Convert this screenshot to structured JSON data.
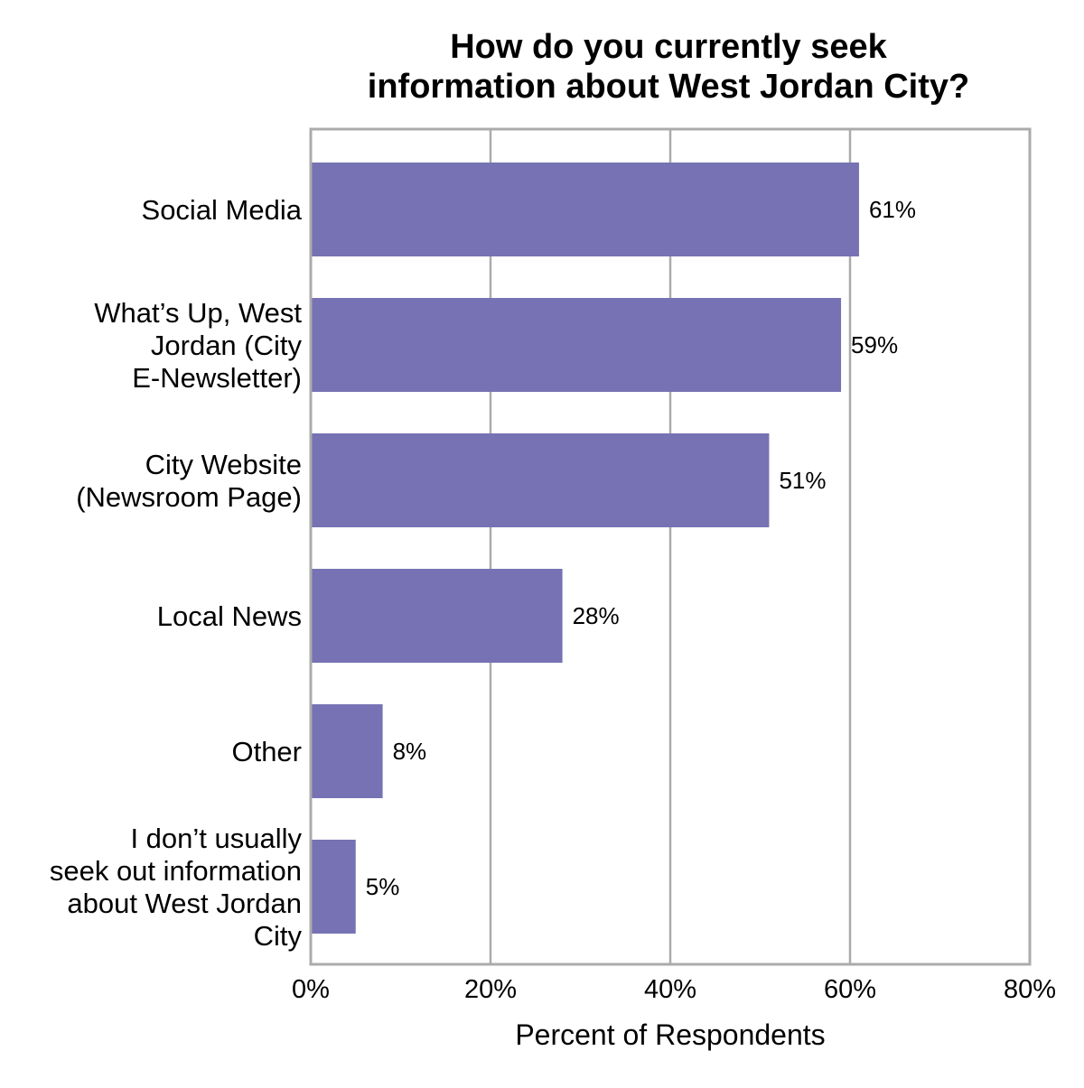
{
  "chart_data": {
    "type": "bar",
    "orientation": "horizontal",
    "title_lines": [
      "How do you currently seek",
      "information about West Jordan City?"
    ],
    "xlabel": "Percent of Respondents",
    "ylabel": "",
    "xlim": [
      0,
      80
    ],
    "x_ticks": [
      0,
      20,
      40,
      60,
      80
    ],
    "x_tick_labels": [
      "0%",
      "20%",
      "40%",
      "60%",
      "80%"
    ],
    "grid": true,
    "bar_color": "#7672B3",
    "categories": [
      {
        "lines": [
          "Social Media"
        ],
        "value": 61,
        "label": "61%"
      },
      {
        "lines": [
          "What’s Up, West",
          "Jordan (City",
          "E-Newsletter)"
        ],
        "value": 59,
        "label": "59%"
      },
      {
        "lines": [
          "City Website",
          "(Newsroom Page)"
        ],
        "value": 51,
        "label": "51%"
      },
      {
        "lines": [
          "Local News"
        ],
        "value": 28,
        "label": "28%"
      },
      {
        "lines": [
          "Other"
        ],
        "value": 8,
        "label": "8%"
      },
      {
        "lines": [
          "I don’t usually",
          "seek out information",
          "about West Jordan",
          "City"
        ],
        "value": 5,
        "label": "5%"
      }
    ]
  }
}
